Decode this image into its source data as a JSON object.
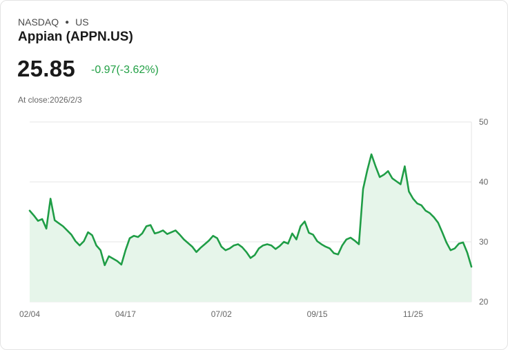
{
  "header": {
    "exchange": "NASDAQ",
    "country": "US",
    "name": "Appian (APPN.US)",
    "price": "25.85",
    "change": "-0.97(-3.62%)",
    "close_label": "At close:2026/2/3"
  },
  "colors": {
    "line": "#1f9d46",
    "fill": "#e6f5ea",
    "grid": "#e6e6e6",
    "change": "#22a045"
  },
  "chart_data": {
    "type": "area",
    "title": "Appian (APPN.US)",
    "ylim": [
      20,
      50
    ],
    "yticks": [
      "50",
      "40",
      "30",
      "20"
    ],
    "ytick_values": [
      50,
      40,
      30,
      20
    ],
    "xticks": [
      "02/04",
      "04/17",
      "07/02",
      "09/15",
      "11/25"
    ],
    "xtick_index": [
      0,
      23,
      46,
      69,
      92
    ],
    "grid": true,
    "values": [
      35.2,
      34.4,
      33.5,
      33.8,
      32.2,
      37.2,
      33.6,
      33.1,
      32.6,
      31.9,
      31.2,
      30.1,
      29.4,
      30.1,
      31.6,
      31.1,
      29.4,
      28.6,
      26.1,
      27.6,
      27.2,
      26.8,
      26.2,
      28.6,
      30.6,
      31.0,
      30.8,
      31.4,
      32.6,
      32.8,
      31.4,
      31.6,
      31.9,
      31.3,
      31.6,
      31.9,
      31.2,
      30.4,
      29.8,
      29.2,
      28.3,
      29.0,
      29.6,
      30.2,
      31.0,
      30.6,
      29.2,
      28.6,
      28.9,
      29.4,
      29.6,
      29.1,
      28.3,
      27.3,
      27.8,
      28.9,
      29.4,
      29.6,
      29.4,
      28.8,
      29.3,
      30.0,
      29.7,
      31.4,
      30.4,
      32.6,
      33.4,
      31.5,
      31.2,
      30.1,
      29.6,
      29.2,
      28.9,
      28.1,
      27.9,
      29.4,
      30.4,
      30.7,
      30.2,
      29.6,
      38.8,
      41.9,
      44.6,
      42.6,
      40.8,
      41.2,
      41.8,
      40.6,
      40.1,
      39.6,
      42.6,
      38.4,
      37.2,
      36.4,
      36.1,
      35.2,
      34.8,
      34.1,
      33.2,
      31.6,
      29.9,
      28.6,
      28.9,
      29.7,
      29.9,
      28.2,
      25.85
    ]
  }
}
